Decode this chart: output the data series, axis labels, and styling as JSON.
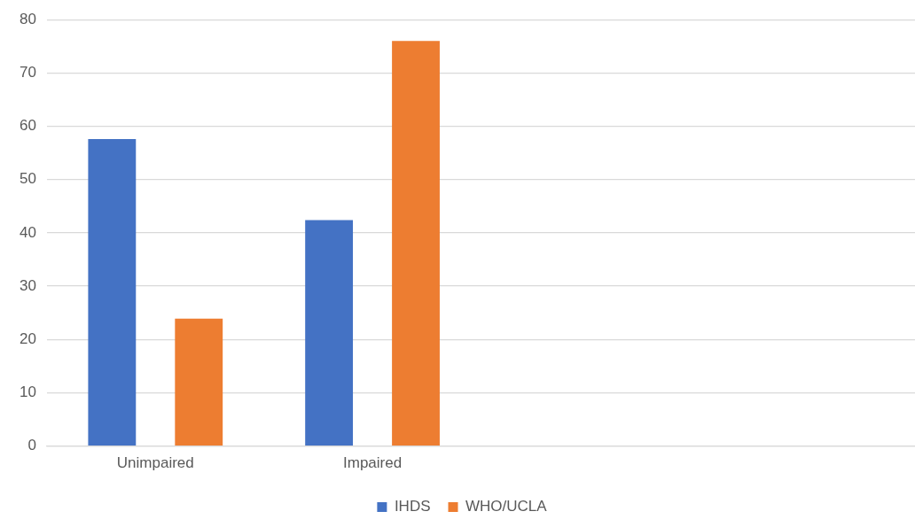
{
  "chart_data": {
    "type": "bar",
    "categories": [
      "Unimpaired",
      "Impaired",
      null,
      null
    ],
    "series": [
      {
        "name": "IHDS",
        "color": "#4472c4",
        "values": [
          57.6,
          42.4,
          null,
          null
        ]
      },
      {
        "name": "WHO/UCLA",
        "color": "#ed7d31",
        "values": [
          23.9,
          76.0,
          null,
          null
        ]
      }
    ],
    "ylim": [
      0,
      80
    ],
    "yticks": [
      0,
      10,
      20,
      30,
      40,
      50,
      60,
      70,
      80
    ],
    "grid": "y",
    "legend": "bottom"
  }
}
